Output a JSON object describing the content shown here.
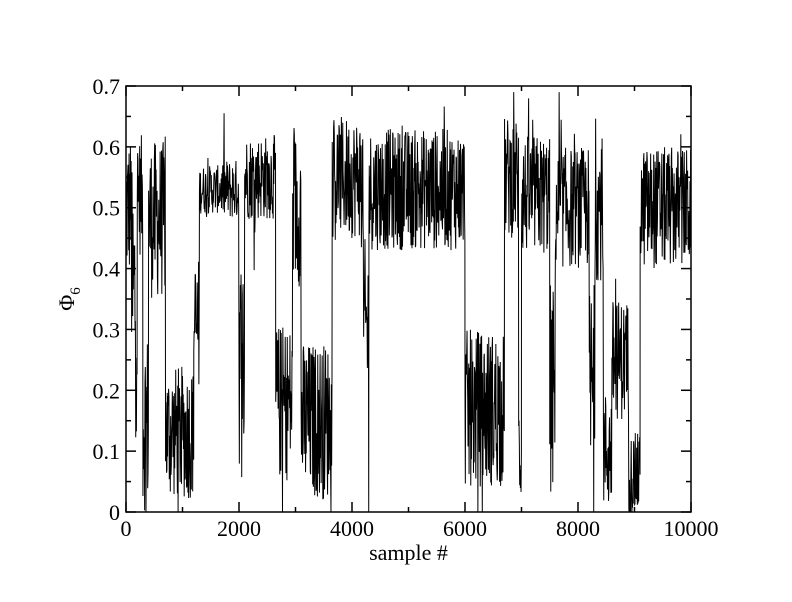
{
  "chart_data": {
    "type": "line",
    "xlabel": "sample #",
    "ylabel": "Φ",
    "ylabel_subscript": "6",
    "xlim": [
      0,
      10000
    ],
    "ylim": [
      0,
      0.7
    ],
    "xticks": [
      0,
      2000,
      4000,
      6000,
      8000,
      10000
    ],
    "xtick_labels": [
      "0",
      "2000",
      "4000",
      "6000",
      "8000",
      "10000"
    ],
    "yticks": [
      0,
      0.1,
      0.2,
      0.3,
      0.4,
      0.5,
      0.6,
      0.7
    ],
    "ytick_labels": [
      "0",
      "0.1",
      "0.2",
      "0.3",
      "0.4",
      "0.5",
      "0.6",
      "0.7"
    ],
    "grid": false,
    "series_color": "#000000",
    "series": [
      {
        "segments": [
          {
            "x": [
              0,
              100
            ],
            "mean": 0.5,
            "spread": 0.12
          },
          {
            "x": [
              100,
              200
            ],
            "mean": 0.35,
            "spread": 0.22
          },
          {
            "x": [
              200,
              300
            ],
            "mean": 0.52,
            "spread": 0.1
          },
          {
            "x": [
              300,
              400
            ],
            "mean": 0.15,
            "spread": 0.15
          },
          {
            "x": [
              400,
              700
            ],
            "mean": 0.48,
            "spread": 0.13
          },
          {
            "x": [
              700,
              1200
            ],
            "mean": 0.13,
            "spread": 0.11
          },
          {
            "x": [
              1200,
              1300
            ],
            "mean": 0.3,
            "spread": 0.12
          },
          {
            "x": [
              1300,
              1700
            ],
            "mean": 0.53,
            "spread": 0.04
          },
          {
            "x": [
              1700,
              2000
            ],
            "mean": 0.53,
            "spread": 0.05
          },
          {
            "x": [
              2000,
              2100
            ],
            "mean": 0.25,
            "spread": 0.18
          },
          {
            "x": [
              2100,
              2650
            ],
            "mean": 0.55,
            "spread": 0.07
          },
          {
            "x": [
              2650,
              2950
            ],
            "mean": 0.18,
            "spread": 0.13
          },
          {
            "x": [
              2950,
              3100
            ],
            "mean": 0.5,
            "spread": 0.13
          },
          {
            "x": [
              3100,
              3650
            ],
            "mean": 0.15,
            "spread": 0.13
          },
          {
            "x": [
              3650,
              4200
            ],
            "mean": 0.55,
            "spread": 0.1
          },
          {
            "x": [
              4200,
              4300
            ],
            "mean": 0.3,
            "spread": 0.15
          },
          {
            "x": [
              4300,
              6000
            ],
            "mean": 0.53,
            "spread": 0.1
          },
          {
            "x": [
              6000,
              6700
            ],
            "mean": 0.17,
            "spread": 0.13
          },
          {
            "x": [
              6700,
              6950
            ],
            "mean": 0.55,
            "spread": 0.1
          },
          {
            "x": [
              6950,
              7000
            ],
            "mean": 0.1,
            "spread": 0.1
          },
          {
            "x": [
              7000,
              7500
            ],
            "mean": 0.52,
            "spread": 0.1
          },
          {
            "x": [
              7500,
              7600
            ],
            "mean": 0.2,
            "spread": 0.18
          },
          {
            "x": [
              7600,
              8200
            ],
            "mean": 0.5,
            "spread": 0.1
          },
          {
            "x": [
              8200,
              8300
            ],
            "mean": 0.2,
            "spread": 0.18
          },
          {
            "x": [
              8300,
              8450
            ],
            "mean": 0.5,
            "spread": 0.12
          },
          {
            "x": [
              8450,
              8600
            ],
            "mean": 0.1,
            "spread": 0.1
          },
          {
            "x": [
              8600,
              8900
            ],
            "mean": 0.25,
            "spread": 0.1
          },
          {
            "x": [
              8900,
              9100
            ],
            "mean": 0.06,
            "spread": 0.07
          },
          {
            "x": [
              9100,
              10000
            ],
            "mean": 0.5,
            "spread": 0.1
          }
        ]
      }
    ]
  }
}
